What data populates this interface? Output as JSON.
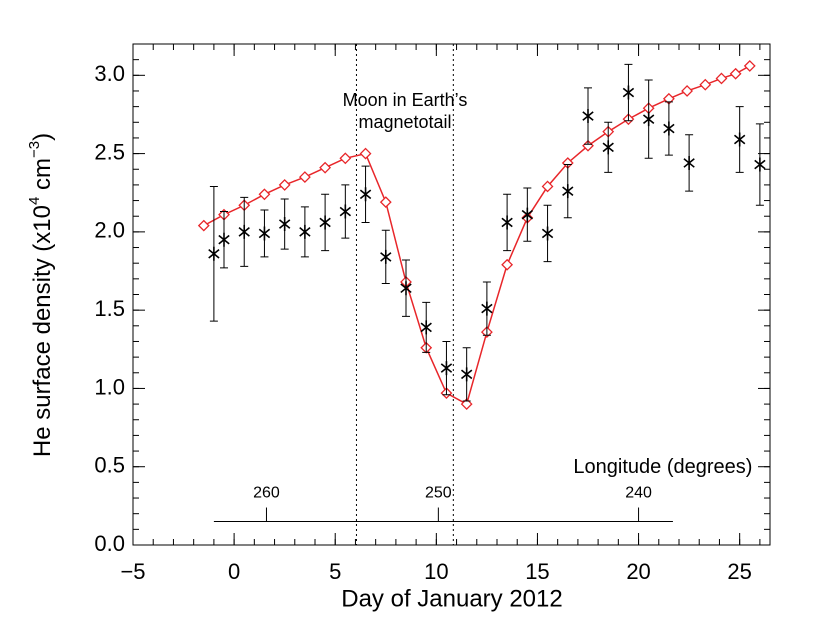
{
  "chart_data": {
    "type": "scatter",
    "xlabel": "Day of January 2012",
    "ylabel": [
      "He surface density (x10",
      "4",
      " cm",
      "−3",
      ")"
    ],
    "xlim": [
      -5,
      26.5
    ],
    "ylim": [
      0,
      3.2
    ],
    "xticks": [
      {
        "value": -5,
        "label": "−5"
      },
      0,
      5,
      10,
      15,
      20,
      25
    ],
    "yticks": [
      {
        "value": 0,
        "label": "0.0"
      },
      {
        "value": 0.5,
        "label": "0.5"
      },
      {
        "value": 1,
        "label": "1.0"
      },
      {
        "value": 1.5,
        "label": "1.5"
      },
      {
        "value": 2,
        "label": "2.0"
      },
      {
        "value": 2.5,
        "label": "2.5"
      },
      {
        "value": 3,
        "label": "3.0"
      }
    ],
    "x_minor_step": 1,
    "y_minor_step": 0.1,
    "model": {
      "color": "#e8262a",
      "x": [
        -1.5,
        -0.5,
        0.5,
        1.5,
        2.5,
        3.5,
        4.5,
        5.5,
        6.5,
        7.5,
        8.5,
        9.5,
        10.5,
        11.5,
        12.5,
        13.5,
        14.5,
        15.5,
        16.5,
        17.5,
        18.5,
        19.5,
        20.5,
        21.5,
        22.4,
        23.3,
        24.1,
        24.8,
        25.5
      ],
      "values": [
        2.04,
        2.11,
        2.17,
        2.24,
        2.3,
        2.35,
        2.41,
        2.47,
        2.5,
        2.19,
        1.68,
        1.26,
        0.97,
        0.9,
        1.36,
        1.79,
        2.09,
        2.29,
        2.44,
        2.55,
        2.64,
        2.72,
        2.79,
        2.85,
        2.9,
        2.94,
        2.98,
        3.01,
        3.06
      ]
    },
    "observations": {
      "color": "#000000",
      "x": [
        -1.0,
        -0.5,
        0.5,
        1.5,
        2.5,
        3.5,
        4.5,
        5.5,
        6.5,
        7.5,
        8.5,
        9.5,
        10.5,
        11.5,
        12.5,
        13.5,
        14.5,
        15.5,
        16.5,
        17.5,
        18.5,
        19.5,
        20.5,
        21.5,
        22.5,
        25.0,
        26.0
      ],
      "values": [
        1.86,
        1.95,
        2.0,
        1.99,
        2.05,
        2.0,
        2.06,
        2.13,
        2.24,
        1.84,
        1.64,
        1.39,
        1.13,
        1.09,
        1.51,
        2.06,
        2.11,
        1.99,
        2.26,
        2.74,
        2.54,
        2.89,
        2.72,
        2.66,
        2.44,
        2.59,
        2.43
      ],
      "errors": [
        0.43,
        0.18,
        0.22,
        0.15,
        0.16,
        0.16,
        0.18,
        0.17,
        0.18,
        0.17,
        0.18,
        0.16,
        0.17,
        0.17,
        0.17,
        0.18,
        0.17,
        0.18,
        0.17,
        0.18,
        0.16,
        0.18,
        0.25,
        0.17,
        0.18,
        0.21,
        0.26
      ]
    },
    "vlines": [
      6.05,
      10.84
    ],
    "annotation": [
      "Moon in Earth’s",
      "magnetotail"
    ],
    "annotation_x": 8.45,
    "longitude_axis": {
      "label": "Longitude (degrees)",
      "y": 0.15,
      "start": -1.0,
      "end": 21.7,
      "ticks": [
        260,
        250,
        240
      ],
      "tick_positions": [
        1.6,
        10.1,
        20.0
      ]
    }
  }
}
